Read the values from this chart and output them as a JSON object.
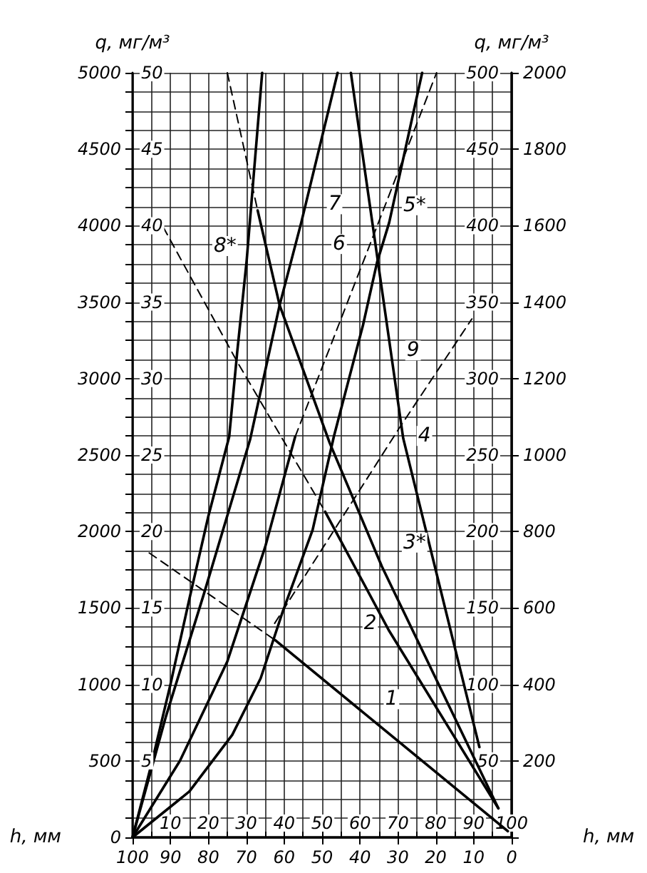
{
  "chart_data": {
    "type": "line",
    "xlabel": "h, мм",
    "x2label": "h, мм",
    "ylabel": "q, мг/м³",
    "y2label": "q, мг/м³",
    "grid": true,
    "marker": "none",
    "xlim": [
      0,
      100
    ],
    "xticks": [
      {
        "value": 0,
        "label": null
      },
      {
        "value": 5,
        "label": null
      },
      10,
      {
        "value": 15,
        "label": null
      },
      20,
      {
        "value": 25,
        "label": null
      },
      30,
      {
        "value": 35,
        "label": null
      },
      40,
      {
        "value": 45,
        "label": null
      },
      50,
      {
        "value": 55,
        "label": null
      },
      60,
      {
        "value": 65,
        "label": null
      },
      70,
      {
        "value": 75,
        "label": null
      },
      80,
      {
        "value": 85,
        "label": null
      },
      90,
      {
        "value": 95,
        "label": null
      },
      100
    ],
    "x2lim": [
      100,
      0
    ],
    "x2ticks": [
      0,
      10,
      20,
      30,
      40,
      50,
      60,
      70,
      80,
      90,
      100
    ],
    "ylim": [
      0,
      5000
    ],
    "yticks": [
      0,
      {
        "value": 125,
        "label": null
      },
      {
        "value": 250,
        "label": null
      },
      {
        "value": 375,
        "label": null
      },
      500,
      {
        "value": 625,
        "label": null
      },
      {
        "value": 750,
        "label": null
      },
      {
        "value": 875,
        "label": null
      },
      1000,
      {
        "value": 1125,
        "label": null
      },
      {
        "value": 1250,
        "label": null
      },
      {
        "value": 1375,
        "label": null
      },
      1500,
      {
        "value": 1625,
        "label": null
      },
      {
        "value": 1750,
        "label": null
      },
      {
        "value": 1875,
        "label": null
      },
      2000,
      {
        "value": 2125,
        "label": null
      },
      {
        "value": 2250,
        "label": null
      },
      {
        "value": 2375,
        "label": null
      },
      2500,
      {
        "value": 2625,
        "label": null
      },
      {
        "value": 2750,
        "label": null
      },
      {
        "value": 2875,
        "label": null
      },
      3000,
      {
        "value": 3125,
        "label": null
      },
      {
        "value": 3250,
        "label": null
      },
      {
        "value": 3375,
        "label": null
      },
      3500,
      {
        "value": 3625,
        "label": null
      },
      {
        "value": 3750,
        "label": null
      },
      {
        "value": 3875,
        "label": null
      },
      4000,
      {
        "value": 4125,
        "label": null
      },
      {
        "value": 4250,
        "label": null
      },
      {
        "value": 4375,
        "label": null
      },
      4500,
      {
        "value": 4625,
        "label": null
      },
      {
        "value": 4750,
        "label": null
      },
      {
        "value": 4875,
        "label": null
      },
      5000
    ],
    "y2lim": [
      0,
      2000
    ],
    "y2ticks": [
      {
        "value": 0,
        "label": null
      },
      200,
      400,
      600,
      800,
      1000,
      1200,
      1400,
      1600,
      1800,
      2000
    ],
    "y3lim": [
      0,
      500
    ],
    "y3ticks": [
      50,
      100,
      150,
      200,
      250,
      300,
      350,
      400,
      450,
      500
    ],
    "series": [
      {
        "color": "#000000",
        "line_style": "solid",
        "x": [
          0,
          5,
          10,
          15,
          20,
          25.5,
          27.6,
          30.1,
          34.2
        ],
        "values": [
          0,
          480,
          1000,
          1560,
          2100,
          2620,
          3170,
          3770,
          5000
        ]
      },
      {
        "color": "#000000",
        "line_style": "solid",
        "x": [
          0,
          8.8,
          18.8,
          31,
          38.8,
          44.5,
          54.1
        ],
        "values": [
          0,
          790,
          1590,
          2600,
          3480,
          4020,
          5000
        ]
      },
      {
        "color": "#000000",
        "line_style": "solid",
        "x": [
          0,
          12.5,
          25,
          35,
          42.9
        ],
        "values": [
          0,
          500,
          1150,
          1900,
          2620
        ]
      },
      {
        "color": "#000000",
        "line_style": "dashed",
        "x": [
          42.9,
          60.8,
          80.2
        ],
        "values": [
          2620,
          3760,
          5000
        ]
      },
      {
        "color": "#000000",
        "line_style": "solid",
        "x": [
          0,
          15,
          26.3,
          33.8,
          39.4,
          47.5,
          53.1,
          60.8,
          64.5,
          67.7,
          76.4
        ],
        "values": [
          0,
          300,
          670,
          1040,
          1460,
          2010,
          2620,
          3350,
          3760,
          4020,
          5000
        ]
      },
      {
        "color": "#000000",
        "line_style": "dashed",
        "x": [
          4.4,
          37.6
        ],
        "values": [
          1860,
          1290
        ]
      },
      {
        "color": "#000000",
        "line_style": "solid",
        "x": [
          37.6,
          99
        ],
        "values": [
          1290,
          40
        ]
      },
      {
        "color": "#000000",
        "line_style": "dashed",
        "x": [
          8.1,
          27.6,
          50.8
        ],
        "values": [
          3990,
          3110,
          2130
        ]
      },
      {
        "color": "#000000",
        "line_style": "solid",
        "x": [
          50.8,
          67.7,
          96.5
        ],
        "values": [
          2130,
          1350,
          190
        ]
      },
      {
        "color": "#000000",
        "line_style": "dashed",
        "x": [
          25,
          33
        ],
        "values": [
          5000,
          4100
        ]
      },
      {
        "color": "#000000",
        "line_style": "solid",
        "x": [
          33,
          38.8,
          52,
          65.8,
          96.5
        ],
        "values": [
          4100,
          3480,
          2580,
          1770,
          190
        ]
      },
      {
        "color": "#000000",
        "line_style": "solid",
        "x": [
          57.6,
          71.4,
          91.5
        ],
        "values": [
          5000,
          2610,
          590
        ]
      },
      {
        "color": "#000000",
        "line_style": "dashed",
        "x": [
          37.5,
          70.2,
          89.5
        ],
        "values": [
          1400,
          2670,
          3390
        ]
      }
    ],
    "annotations": [
      "5",
      "10",
      "15",
      "20",
      "25",
      "30",
      "35",
      "40",
      "45",
      "50",
      {
        "text": "1",
        "x": 68.3,
        "y": 903
      },
      {
        "text": "2",
        "x": 62.7,
        "y": 1400
      },
      {
        "text": "3*",
        "x": 74.4,
        "y": 1927
      },
      {
        "text": "4",
        "x": 77,
        "y": 2625
      },
      {
        "text": "5*",
        "x": 74.4,
        "y": 4134
      },
      {
        "text": "6",
        "x": 54.5,
        "y": 3880
      },
      {
        "text": "7",
        "x": 53.3,
        "y": 4140
      },
      {
        "text": "8*",
        "x": 24.4,
        "y": 3867
      },
      {
        "text": "9",
        "x": 74,
        "y": 3184
      }
    ]
  }
}
